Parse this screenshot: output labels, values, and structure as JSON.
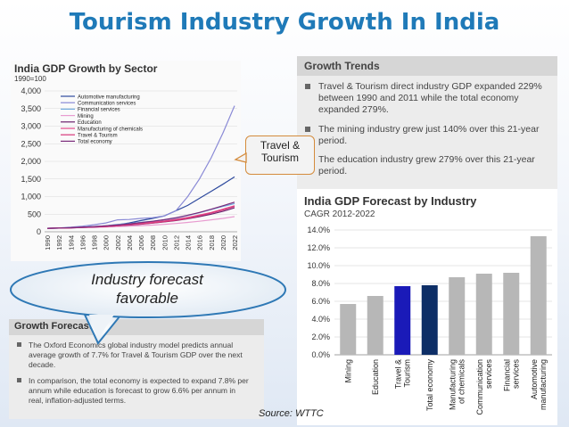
{
  "slide_title": "Tourism Industry Growth In India",
  "callouts": {
    "travel_tourism": [
      "Travel &",
      "Tourism"
    ],
    "industry_forecast": [
      "Industry forecast",
      "favorable"
    ]
  },
  "growth_trends": {
    "title": "Growth Trends",
    "bullets": [
      [
        "Travel & Tourism direct industry GDP expanded 229%",
        "between 1990 and 2011 while the total economy",
        "expanded 279%."
      ],
      [
        "The mining industry grew just 140% over this 21-year",
        "period."
      ],
      [
        "The education industry grew 279% over this 21-year",
        "period."
      ]
    ]
  },
  "growth_forecasts": {
    "title": "Growth Forecasts",
    "bullets": [
      [
        "The Oxford Economics global industry model predicts annual",
        "average growth of 7.7% for Travel & Tourism GDP over the next",
        "decade."
      ],
      [
        "In comparison, the total economy is expected to expand 7.8% per",
        "annum while education is forecast to grow 6.6% per annum in",
        "real, inflation-adjusted terms."
      ]
    ]
  },
  "source": "Source: WTTC",
  "chart_data": [
    {
      "type": "line",
      "title": "India GDP Growth by Sector",
      "subtitle": "1990=100",
      "x": [
        1990,
        1992,
        1994,
        1996,
        1998,
        2000,
        2002,
        2004,
        2006,
        2008,
        2010,
        2012,
        2014,
        2016,
        2018,
        2020,
        2022
      ],
      "ylim": [
        0,
        4000
      ],
      "yticks": [
        0,
        500,
        1000,
        1500,
        2000,
        2500,
        3000,
        3500,
        4000
      ],
      "ytick_labels": [
        "0",
        "500",
        "1,000",
        "1,500",
        "2,000",
        "2,500",
        "3,000",
        "3,500",
        "4,000"
      ],
      "legend_position": "top-left",
      "series": [
        {
          "name": "Automotive manufacturing",
          "color": "#2e4a9e",
          "values": [
            100,
            105,
            115,
            130,
            150,
            170,
            200,
            250,
            320,
            380,
            450,
            600,
            750,
            950,
            1150,
            1350,
            1560
          ]
        },
        {
          "name": "Communication services",
          "color": "#8a8ad6",
          "values": [
            100,
            110,
            130,
            160,
            200,
            250,
            340,
            350,
            380,
            400,
            450,
            600,
            1000,
            1500,
            2100,
            2800,
            3580
          ]
        },
        {
          "name": "Financial services",
          "color": "#6fa8dc",
          "values": [
            100,
            105,
            115,
            130,
            150,
            170,
            210,
            230,
            270,
            300,
            340,
            390,
            460,
            540,
            630,
            720,
            800
          ]
        },
        {
          "name": "Mining",
          "color": "#e89cd0",
          "values": [
            100,
            105,
            110,
            118,
            125,
            135,
            150,
            160,
            175,
            190,
            210,
            235,
            265,
            300,
            340,
            380,
            430
          ]
        },
        {
          "name": "Education",
          "color": "#6a1f6b",
          "values": [
            100,
            105,
            112,
            122,
            135,
            150,
            170,
            190,
            215,
            245,
            280,
            320,
            370,
            430,
            500,
            580,
            680
          ]
        },
        {
          "name": "Manufacturing of chemicals",
          "color": "#e24a8a",
          "values": [
            100,
            106,
            115,
            128,
            145,
            165,
            190,
            215,
            245,
            275,
            310,
            355,
            410,
            475,
            550,
            640,
            740
          ]
        },
        {
          "name": "Travel & Tourism",
          "color": "#d6377a",
          "values": [
            100,
            104,
            112,
            122,
            135,
            150,
            170,
            195,
            220,
            250,
            285,
            330,
            380,
            450,
            530,
            620,
            720
          ]
        },
        {
          "name": "Total economy",
          "color": "#7a2a7a",
          "values": [
            100,
            106,
            116,
            130,
            148,
            170,
            195,
            225,
            260,
            300,
            345,
            400,
            470,
            550,
            640,
            740,
            840
          ]
        }
      ]
    },
    {
      "type": "bar",
      "title": "India GDP Forecast by Industry",
      "subtitle": "CAGR 2012-2022",
      "categories": [
        "Mining",
        "Education",
        "Travel & Tourism",
        "Total economy",
        "Manufacturing of chemicals",
        "Communication services",
        "Financial services",
        "Automotive manufacturing"
      ],
      "category_labels": [
        [
          "Mining"
        ],
        [
          "Education"
        ],
        [
          "Travel &",
          "Tourism"
        ],
        [
          "Total economy"
        ],
        [
          "Manufacturing",
          "of chemicals"
        ],
        [
          "Communication",
          "services"
        ],
        [
          "Financial",
          "services"
        ],
        [
          "Automotive",
          "manufacturing"
        ]
      ],
      "values": [
        5.7,
        6.6,
        7.7,
        7.8,
        8.7,
        9.1,
        9.2,
        13.3
      ],
      "colors": [
        "#b7b7b7",
        "#b7b7b7",
        "#1a1ab8",
        "#0d2e66",
        "#b7b7b7",
        "#b7b7b7",
        "#b7b7b7",
        "#b7b7b7"
      ],
      "ylim": [
        0,
        14
      ],
      "yticks": [
        0,
        2,
        4,
        6,
        8,
        10,
        12,
        14
      ],
      "ytick_labels": [
        "0.0%",
        "2.0%",
        "4.0%",
        "6.0%",
        "8.0%",
        "10.0%",
        "12.0%",
        "14.0%"
      ]
    }
  ]
}
